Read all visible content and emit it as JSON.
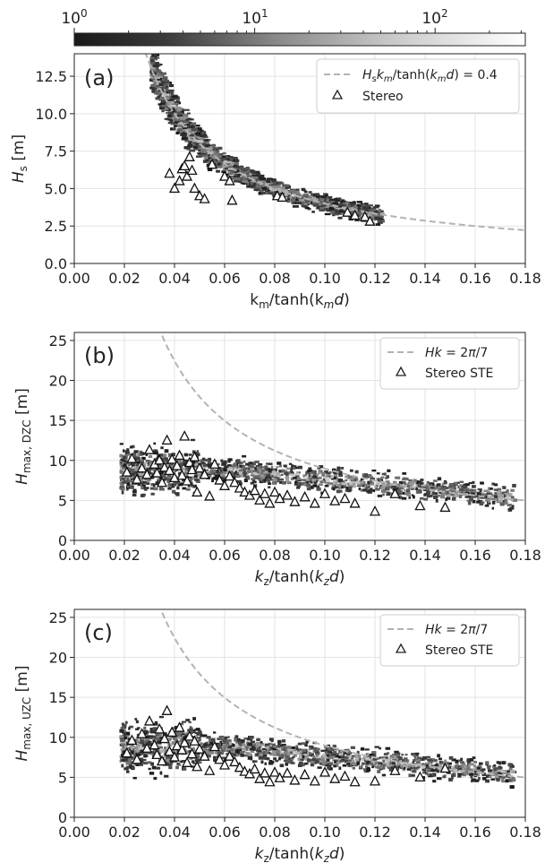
{
  "colorbar": {
    "labels": [
      {
        "base": "10",
        "exp": "0",
        "value": 1
      },
      {
        "base": "10",
        "exp": "1",
        "value": 10
      },
      {
        "base": "10",
        "exp": "2",
        "value": 100
      }
    ],
    "log_range": [
      0,
      2.5
    ],
    "colors": {
      "low": "#1a1a1a",
      "high": "#ffffff"
    }
  },
  "chart_data": [
    {
      "type": "scatter",
      "panel_label": "(a)",
      "xlabel": "k_m/tanh(k_m d)",
      "ylabel": "H_s [m]",
      "xlim": [
        0,
        0.18
      ],
      "ylim": [
        0,
        14
      ],
      "xticks": [
        "0.00",
        "0.02",
        "0.04",
        "0.06",
        "0.08",
        "0.10",
        "0.12",
        "0.14",
        "0.16",
        "0.18"
      ],
      "yticks": [
        "0.0",
        "2.5",
        "5.0",
        "7.5",
        "10.0",
        "12.5"
      ],
      "ytick_values": [
        0,
        2.5,
        5,
        7.5,
        10,
        12.5
      ],
      "grid": true,
      "legend_position": "top-right",
      "legend": [
        {
          "label": "H_s k_m / tanh(k_m d) = 0.4",
          "style": "dashed-line"
        },
        {
          "label": "Stereo",
          "style": "triangle"
        }
      ],
      "curve": {
        "type": "hyperbola",
        "product": 0.4,
        "color": "#b3b3b3"
      },
      "series": [
        {
          "name": "Stereo",
          "x": [
            0.038,
            0.04,
            0.042,
            0.043,
            0.044,
            0.045,
            0.046,
            0.047,
            0.048,
            0.05,
            0.052,
            0.055,
            0.06,
            0.062,
            0.063,
            0.081,
            0.083,
            0.109,
            0.112,
            0.116,
            0.118
          ],
          "y": [
            6.0,
            5.0,
            5.5,
            6.3,
            6.5,
            5.8,
            7.1,
            6.2,
            5.0,
            4.5,
            4.3,
            6.6,
            5.8,
            5.5,
            4.2,
            4.5,
            4.4,
            3.4,
            3.2,
            3.1,
            2.8
          ]
        }
      ]
    },
    {
      "type": "scatter",
      "panel_label": "(b)",
      "xlabel": "k_z/tanh(k_z d)",
      "ylabel": "H_max, DZC [m]",
      "xlim": [
        0,
        0.18
      ],
      "ylim": [
        0,
        26
      ],
      "xticks": [
        "0.00",
        "0.02",
        "0.04",
        "0.06",
        "0.08",
        "0.10",
        "0.12",
        "0.14",
        "0.16",
        "0.18"
      ],
      "yticks": [
        "0",
        "5",
        "10",
        "15",
        "20",
        "25"
      ],
      "ytick_values": [
        0,
        5,
        10,
        15,
        20,
        25
      ],
      "grid": true,
      "legend_position": "top-right",
      "legend": [
        {
          "label": "Hk = 2π/7",
          "style": "dashed-line"
        },
        {
          "label": "Stereo STE",
          "style": "triangle"
        }
      ],
      "curve": {
        "type": "hyperbola",
        "product": 0.8976,
        "color": "#b3b3b3"
      },
      "series": [
        {
          "name": "Stereo STE",
          "x": [
            0.021,
            0.023,
            0.025,
            0.027,
            0.029,
            0.03,
            0.032,
            0.033,
            0.034,
            0.035,
            0.036,
            0.037,
            0.038,
            0.039,
            0.04,
            0.041,
            0.042,
            0.043,
            0.044,
            0.045,
            0.046,
            0.047,
            0.048,
            0.049,
            0.05,
            0.052,
            0.054,
            0.056,
            0.058,
            0.06,
            0.062,
            0.064,
            0.066,
            0.068,
            0.07,
            0.072,
            0.074,
            0.076,
            0.078,
            0.08,
            0.082,
            0.085,
            0.088,
            0.092,
            0.096,
            0.1,
            0.104,
            0.108,
            0.112,
            0.12,
            0.128,
            0.138,
            0.148
          ],
          "y": [
            8.5,
            10.2,
            7.6,
            9.0,
            8.2,
            11.3,
            9.5,
            8.4,
            10.0,
            7.2,
            9.1,
            12.5,
            8.7,
            10.1,
            7.8,
            9.3,
            10.6,
            8.1,
            13.0,
            7.4,
            9.7,
            8.8,
            10.4,
            6.0,
            9.0,
            8.2,
            5.5,
            9.5,
            7.5,
            6.8,
            8.0,
            7.2,
            6.5,
            6.0,
            5.6,
            6.2,
            5.0,
            5.8,
            4.6,
            6.0,
            5.2,
            5.6,
            4.8,
            5.4,
            4.6,
            5.8,
            4.9,
            5.2,
            4.6,
            3.6,
            5.8,
            4.3,
            4.1
          ]
        }
      ]
    },
    {
      "type": "scatter",
      "panel_label": "(c)",
      "xlabel": "k_z/tanh(k_z d)",
      "ylabel": "H_max, UZC [m]",
      "xlim": [
        0,
        0.18
      ],
      "ylim": [
        0,
        26
      ],
      "xticks": [
        "0.00",
        "0.02",
        "0.04",
        "0.06",
        "0.08",
        "0.10",
        "0.12",
        "0.14",
        "0.16",
        "0.18"
      ],
      "yticks": [
        "0",
        "5",
        "10",
        "15",
        "20",
        "25"
      ],
      "ytick_values": [
        0,
        5,
        10,
        15,
        20,
        25
      ],
      "grid": true,
      "legend_position": "top-right",
      "legend": [
        {
          "label": "Hk = 2π/7",
          "style": "dashed-line"
        },
        {
          "label": "Stereo STE",
          "style": "triangle"
        }
      ],
      "curve": {
        "type": "hyperbola",
        "product": 0.8976,
        "color": "#b3b3b3"
      },
      "series": [
        {
          "name": "Stereo STE",
          "x": [
            0.021,
            0.023,
            0.025,
            0.027,
            0.029,
            0.03,
            0.032,
            0.033,
            0.034,
            0.035,
            0.036,
            0.037,
            0.038,
            0.039,
            0.04,
            0.041,
            0.042,
            0.043,
            0.044,
            0.045,
            0.046,
            0.047,
            0.048,
            0.049,
            0.05,
            0.052,
            0.054,
            0.056,
            0.058,
            0.06,
            0.062,
            0.064,
            0.066,
            0.068,
            0.07,
            0.072,
            0.074,
            0.076,
            0.078,
            0.08,
            0.082,
            0.085,
            0.088,
            0.092,
            0.096,
            0.1,
            0.104,
            0.108,
            0.112,
            0.12,
            0.128,
            0.138,
            0.148
          ],
          "y": [
            8.0,
            9.6,
            7.2,
            10.4,
            8.6,
            12.0,
            9.0,
            7.8,
            11.0,
            7.0,
            9.8,
            13.3,
            8.2,
            10.6,
            7.5,
            8.9,
            11.2,
            8.4,
            9.3,
            6.8,
            10.1,
            7.9,
            9.5,
            6.3,
            8.5,
            7.6,
            5.8,
            8.8,
            7.2,
            6.5,
            7.6,
            6.9,
            6.2,
            5.7,
            5.4,
            6.0,
            4.8,
            5.5,
            4.4,
            5.6,
            4.9,
            5.5,
            4.6,
            5.3,
            4.5,
            5.6,
            4.8,
            5.1,
            4.4,
            4.5,
            5.8,
            5.0,
            6.1
          ]
        }
      ]
    }
  ]
}
